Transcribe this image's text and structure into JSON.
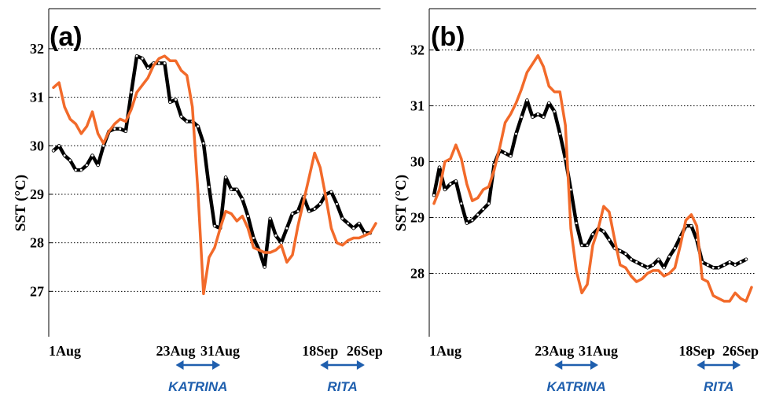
{
  "colors": {
    "modis": "#000000",
    "model": "#f26a2a",
    "arrow": "#1f5fae"
  },
  "chart_data": [
    {
      "type": "line",
      "panel_label": "(a)",
      "ylabel": "SST (°C)",
      "ytick_values": [
        27,
        28,
        29,
        30,
        31,
        32
      ],
      "yticks": [
        "27",
        "28",
        "29",
        "30",
        "31",
        "32"
      ],
      "ylim": [
        26.6,
        32.55
      ],
      "xlim": [
        1,
        59
      ],
      "xtick_values": [
        1,
        23,
        31,
        49,
        57
      ],
      "xticks": [
        "1Aug",
        "23Aug",
        "31Aug",
        "18Sep",
        "26Sep"
      ],
      "grid": "horizontal dotted",
      "events": [
        {
          "name": "KATRINA",
          "from": 23,
          "to": 31
        },
        {
          "name": "RITA",
          "from": 49,
          "to": 57
        }
      ],
      "series": [
        {
          "color": "black",
          "markers": true,
          "x": [
            1,
            2,
            3,
            4,
            5,
            6,
            7,
            8,
            9,
            10,
            11,
            12,
            13,
            14,
            15,
            16,
            17,
            18,
            19,
            20,
            21,
            22,
            23,
            24,
            25,
            26,
            27,
            28,
            29,
            30,
            31,
            32,
            33,
            34,
            35,
            36,
            37,
            38,
            39,
            40,
            41,
            42,
            43,
            44,
            45,
            46,
            47,
            48,
            49,
            50,
            51,
            52,
            53,
            54,
            55,
            56,
            57,
            58
          ],
          "values": [
            29.9,
            30.0,
            29.8,
            29.7,
            29.5,
            29.5,
            29.6,
            29.8,
            29.6,
            30.0,
            30.3,
            30.35,
            30.35,
            30.3,
            31.1,
            31.85,
            31.8,
            31.6,
            31.7,
            31.7,
            31.7,
            30.9,
            30.95,
            30.6,
            30.5,
            30.5,
            30.4,
            30.05,
            29.15,
            28.35,
            28.3,
            29.35,
            29.1,
            29.1,
            28.9,
            28.55,
            28.1,
            27.85,
            27.5,
            28.5,
            28.15,
            28.0,
            28.3,
            28.6,
            28.65,
            28.95,
            28.65,
            28.7,
            28.8,
            29.0,
            29.05,
            28.8,
            28.5,
            28.4,
            28.3,
            28.4,
            28.2,
            28.2
          ]
        },
        {
          "color": "orange",
          "markers": false,
          "x": [
            1,
            2,
            3,
            4,
            5,
            6,
            7,
            8,
            9,
            10,
            11,
            12,
            13,
            14,
            15,
            16,
            17,
            18,
            19,
            20,
            21,
            22,
            23,
            24,
            25,
            26,
            27,
            28,
            29,
            30,
            31,
            32,
            33,
            34,
            35,
            36,
            37,
            38,
            39,
            40,
            41,
            42,
            43,
            44,
            45,
            46,
            47,
            48,
            49,
            50,
            51,
            52,
            53,
            54,
            55,
            56,
            57,
            58,
            59
          ],
          "values": [
            31.2,
            31.3,
            30.8,
            30.55,
            30.45,
            30.25,
            30.4,
            30.7,
            30.25,
            30.05,
            30.3,
            30.45,
            30.55,
            30.5,
            30.75,
            31.1,
            31.25,
            31.4,
            31.65,
            31.8,
            31.85,
            31.75,
            31.75,
            31.55,
            31.45,
            30.8,
            29.05,
            26.95,
            27.7,
            27.9,
            28.3,
            28.65,
            28.6,
            28.45,
            28.55,
            28.3,
            27.9,
            27.85,
            27.8,
            27.8,
            27.85,
            27.95,
            27.6,
            27.75,
            28.35,
            28.85,
            29.35,
            29.85,
            29.55,
            28.95,
            28.3,
            28.0,
            27.95,
            28.05,
            28.1,
            28.1,
            28.15,
            28.2,
            28.4
          ]
        }
      ]
    },
    {
      "type": "line",
      "panel_label": "(b)",
      "ylabel": "SST (°C)",
      "ytick_values": [
        28,
        29,
        30,
        31,
        32
      ],
      "yticks": [
        "28",
        "29",
        "30",
        "31",
        "32"
      ],
      "ylim": [
        27.33,
        32.5
      ],
      "xlim": [
        1,
        59
      ],
      "xtick_values": [
        1,
        23,
        31,
        49,
        57
      ],
      "xticks": [
        "1Aug",
        "23Aug",
        "31Aug",
        "18Sep",
        "26Sep"
      ],
      "grid": "horizontal dotted",
      "events": [
        {
          "name": "KATRINA",
          "from": 23,
          "to": 31
        },
        {
          "name": "RITA",
          "from": 49,
          "to": 57
        }
      ],
      "series": [
        {
          "color": "black",
          "markers": true,
          "x": [
            1,
            2,
            3,
            4,
            5,
            6,
            7,
            8,
            9,
            10,
            11,
            12,
            13,
            14,
            15,
            16,
            17,
            18,
            19,
            20,
            21,
            22,
            23,
            24,
            25,
            26,
            27,
            28,
            29,
            30,
            31,
            32,
            33,
            34,
            35,
            36,
            37,
            38,
            39,
            40,
            41,
            42,
            43,
            44,
            45,
            46,
            47,
            48,
            49,
            50,
            51,
            52,
            53,
            54,
            55,
            56,
            57,
            58
          ],
          "values": [
            29.4,
            29.9,
            29.5,
            29.6,
            29.65,
            29.25,
            28.9,
            28.95,
            29.05,
            29.15,
            29.25,
            29.95,
            30.2,
            30.15,
            30.1,
            30.5,
            30.8,
            31.1,
            30.8,
            30.85,
            30.8,
            31.05,
            30.9,
            30.5,
            30.05,
            29.5,
            28.9,
            28.5,
            28.5,
            28.7,
            28.8,
            28.75,
            28.6,
            28.45,
            28.4,
            28.35,
            28.25,
            28.2,
            28.15,
            28.1,
            28.15,
            28.25,
            28.1,
            28.3,
            28.45,
            28.65,
            28.85,
            28.85,
            28.6,
            28.2,
            28.15,
            28.1,
            28.1,
            28.15,
            28.2,
            28.15,
            28.2,
            28.25
          ]
        },
        {
          "color": "orange",
          "markers": false,
          "x": [
            1,
            2,
            3,
            4,
            5,
            6,
            7,
            8,
            9,
            10,
            11,
            12,
            13,
            14,
            15,
            16,
            17,
            18,
            19,
            20,
            21,
            22,
            23,
            24,
            25,
            26,
            27,
            28,
            29,
            30,
            31,
            32,
            33,
            34,
            35,
            36,
            37,
            38,
            39,
            40,
            41,
            42,
            43,
            44,
            45,
            46,
            47,
            48,
            49,
            50,
            51,
            52,
            53,
            54,
            55,
            56,
            57,
            58,
            59
          ],
          "values": [
            29.25,
            29.5,
            30.0,
            30.05,
            30.3,
            30.05,
            29.6,
            29.3,
            29.35,
            29.5,
            29.55,
            29.85,
            30.25,
            30.7,
            30.85,
            31.05,
            31.3,
            31.6,
            31.75,
            31.9,
            31.7,
            31.35,
            31.25,
            31.25,
            30.65,
            28.8,
            28.05,
            27.65,
            27.8,
            28.5,
            28.8,
            29.2,
            29.1,
            28.6,
            28.15,
            28.1,
            27.95,
            27.85,
            27.9,
            28.0,
            28.05,
            28.05,
            27.95,
            28.0,
            28.1,
            28.5,
            28.95,
            29.05,
            28.85,
            27.9,
            27.85,
            27.6,
            27.55,
            27.5,
            27.5,
            27.65,
            27.55,
            27.5,
            27.75
          ]
        }
      ]
    }
  ]
}
